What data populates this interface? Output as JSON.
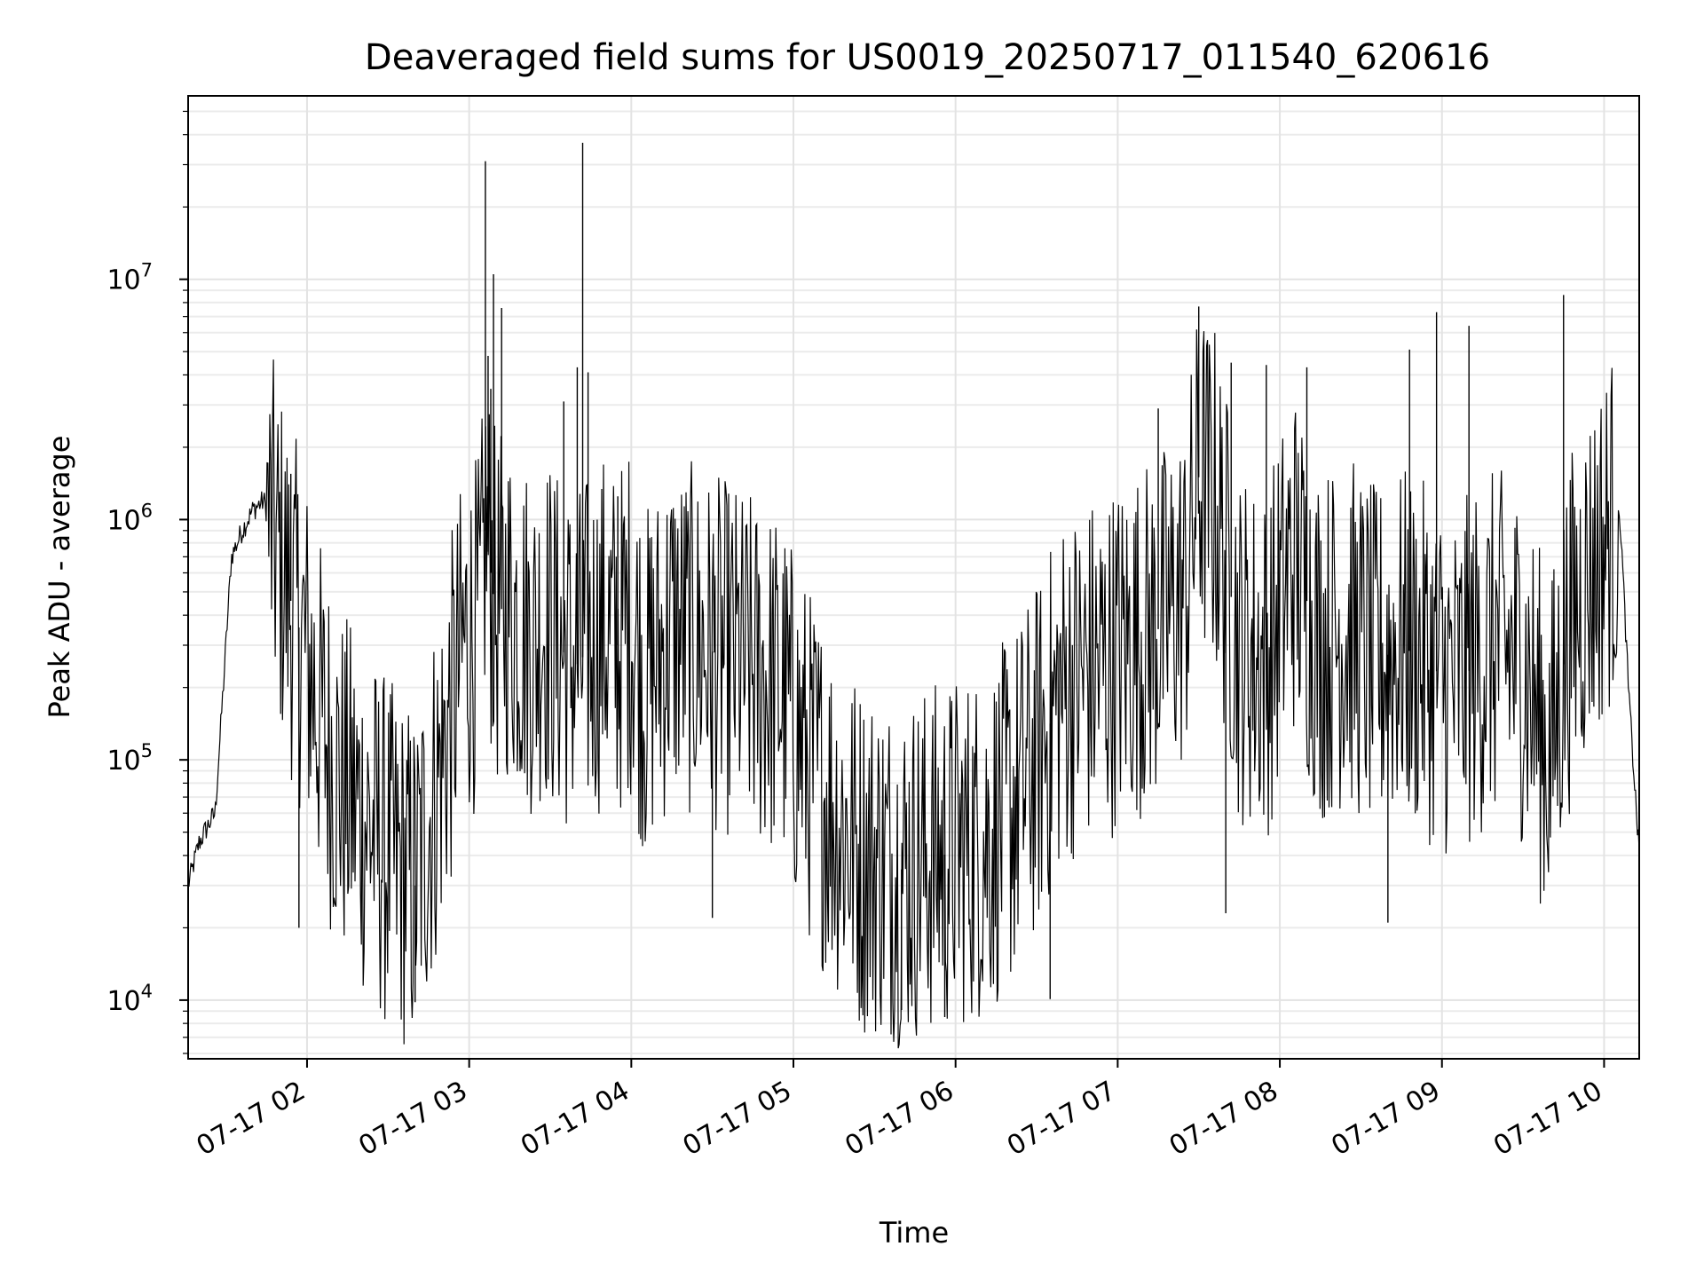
{
  "chart_data": {
    "type": "line",
    "title": "Deaveraged field sums for US0019_20250717_011540_620616",
    "xlabel": "Time",
    "ylabel": "Peak ADU - average",
    "yscale": "log",
    "xlim": [
      "2025-07-17 01:16",
      "2025-07-17 10:13"
    ],
    "ylim": [
      5700,
      58000000
    ],
    "x_ticks": [
      {
        "value": "2025-07-17 02:00",
        "label": "07-17 02"
      },
      {
        "value": "2025-07-17 03:00",
        "label": "07-17 03"
      },
      {
        "value": "2025-07-17 04:00",
        "label": "07-17 04"
      },
      {
        "value": "2025-07-17 05:00",
        "label": "07-17 05"
      },
      {
        "value": "2025-07-17 06:00",
        "label": "07-17 06"
      },
      {
        "value": "2025-07-17 07:00",
        "label": "07-17 07"
      },
      {
        "value": "2025-07-17 08:00",
        "label": "07-17 08"
      },
      {
        "value": "2025-07-17 09:00",
        "label": "07-17 09"
      },
      {
        "value": "2025-07-17 10:00",
        "label": "07-17 10"
      }
    ],
    "y_ticks": [
      {
        "value": 10000,
        "base": "10",
        "exp": "4"
      },
      {
        "value": 100000,
        "base": "10",
        "exp": "5"
      },
      {
        "value": 1000000,
        "base": "10",
        "exp": "6"
      },
      {
        "value": 10000000,
        "base": "10",
        "exp": "7"
      }
    ],
    "grid": true,
    "line_color": "#000000",
    "series": [
      {
        "x": [
          "2025-07-17 01:16",
          "2025-07-17 01:20",
          "2025-07-17 01:24",
          "2025-07-17 01:26",
          "2025-07-17 01:29",
          "2025-07-17 01:32",
          "2025-07-17 01:36",
          "2025-07-17 01:40",
          "2025-07-17 01:44",
          "2025-07-17 01:48",
          "2025-07-17 01:53",
          "2025-07-17 01:59",
          "2025-07-17 02:05",
          "2025-07-17 02:12",
          "2025-07-17 02:20",
          "2025-07-17 02:30",
          "2025-07-17 02:40",
          "2025-07-17 02:50",
          "2025-07-17 02:58",
          "2025-07-17 03:04",
          "2025-07-17 03:06",
          "2025-07-17 03:10",
          "2025-07-17 03:14",
          "2025-07-17 03:20",
          "2025-07-17 03:25",
          "2025-07-17 03:27",
          "2025-07-17 03:32",
          "2025-07-17 03:40",
          "2025-07-17 03:50",
          "2025-07-17 03:55",
          "2025-07-17 04:00",
          "2025-07-17 04:05",
          "2025-07-17 04:15",
          "2025-07-17 04:25",
          "2025-07-17 04:40",
          "2025-07-17 04:55",
          "2025-07-17 05:05",
          "2025-07-17 05:15",
          "2025-07-17 05:25",
          "2025-07-17 05:40",
          "2025-07-17 05:55",
          "2025-07-17 06:10",
          "2025-07-17 06:20",
          "2025-07-17 06:30",
          "2025-07-17 06:40",
          "2025-07-17 06:55",
          "2025-07-17 07:05",
          "2025-07-17 07:15",
          "2025-07-17 07:25",
          "2025-07-17 07:30",
          "2025-07-17 07:36",
          "2025-07-17 07:45",
          "2025-07-17 07:55",
          "2025-07-17 08:05",
          "2025-07-17 08:15",
          "2025-07-17 08:25",
          "2025-07-17 08:35",
          "2025-07-17 08:45",
          "2025-07-17 08:55",
          "2025-07-17 09:05",
          "2025-07-17 09:12",
          "2025-07-17 09:20",
          "2025-07-17 09:30",
          "2025-07-17 09:40",
          "2025-07-17 09:46",
          "2025-07-17 09:52",
          "2025-07-17 09:58",
          "2025-07-17 10:02",
          "2025-07-17 10:06",
          "2025-07-17 10:09",
          "2025-07-17 10:13"
        ],
        "y": [
          30000,
          45000,
          55000,
          60000,
          200000,
          700000,
          900000,
          1100000,
          1200000,
          800000,
          500000,
          300000,
          150000,
          80000,
          60000,
          40000,
          30000,
          100000,
          300000,
          350000,
          900000,
          400000,
          450000,
          350000,
          300000,
          400000,
          300000,
          250000,
          350000,
          300000,
          400000,
          200000,
          350000,
          300000,
          250000,
          200000,
          100000,
          60000,
          40000,
          35000,
          40000,
          45000,
          60000,
          100000,
          200000,
          250000,
          300000,
          350000,
          500000,
          1500000,
          1200000,
          300000,
          250000,
          700000,
          300000,
          350000,
          250000,
          300000,
          250000,
          200000,
          250000,
          300000,
          250000,
          100000,
          300000,
          500000,
          700000,
          900000,
          1000000,
          200000,
          40000
        ]
      }
    ],
    "spikes": [
      {
        "x": "2025-07-17 03:06",
        "y": 31000000
      },
      {
        "x": "2025-07-17 03:07",
        "y": 4800000
      },
      {
        "x": "2025-07-17 03:08",
        "y": 3500000
      },
      {
        "x": "2025-07-17 03:09",
        "y": 10500000
      },
      {
        "x": "2025-07-17 03:12",
        "y": 7600000
      },
      {
        "x": "2025-07-17 03:35",
        "y": 3100000
      },
      {
        "x": "2025-07-17 03:40",
        "y": 4300000
      },
      {
        "x": "2025-07-17 03:42",
        "y": 37000000
      },
      {
        "x": "2025-07-17 03:44",
        "y": 4100000
      },
      {
        "x": "2025-07-17 01:54",
        "y": 1550000
      },
      {
        "x": "2025-07-17 03:55",
        "y": 1250000
      },
      {
        "x": "2025-07-17 07:15",
        "y": 2900000
      },
      {
        "x": "2025-07-17 07:30",
        "y": 7700000
      },
      {
        "x": "2025-07-17 07:42",
        "y": 4500000
      },
      {
        "x": "2025-07-17 07:55",
        "y": 4400000
      },
      {
        "x": "2025-07-17 08:10",
        "y": 4300000
      },
      {
        "x": "2025-07-17 08:48",
        "y": 5100000
      },
      {
        "x": "2025-07-17 08:58",
        "y": 7300000
      },
      {
        "x": "2025-07-17 09:10",
        "y": 6400000
      },
      {
        "x": "2025-07-17 09:45",
        "y": 8600000
      },
      {
        "x": "2025-07-17 02:40",
        "y": 9800
      },
      {
        "x": "2025-07-17 05:40",
        "y": 9100
      },
      {
        "x": "2025-07-17 05:56",
        "y": 8500
      },
      {
        "x": "2025-07-17 06:35",
        "y": 10100
      },
      {
        "x": "2025-07-17 01:57",
        "y": 20000
      },
      {
        "x": "2025-07-17 04:30",
        "y": 22000
      },
      {
        "x": "2025-07-17 07:40",
        "y": 23000
      },
      {
        "x": "2025-07-17 08:40",
        "y": 21000
      }
    ]
  }
}
